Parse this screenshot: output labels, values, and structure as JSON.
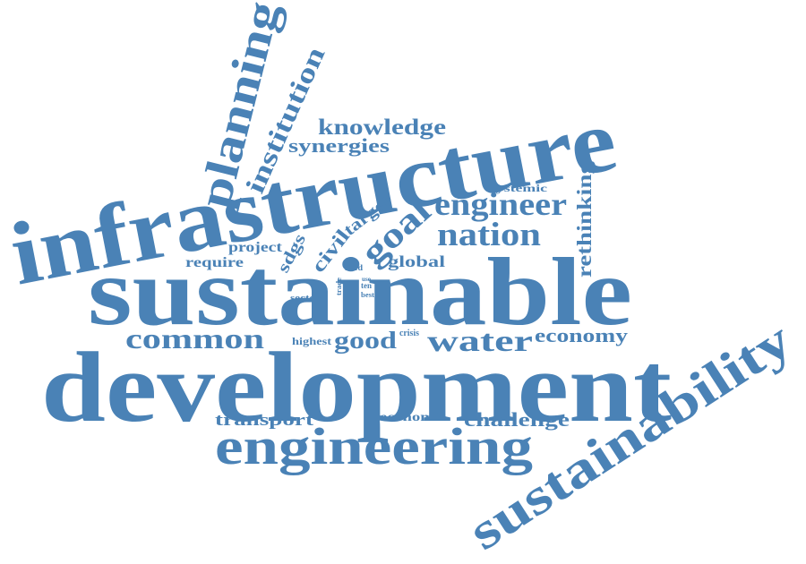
{
  "color": "#4a82b6",
  "words": [
    {
      "id": "infrastructure",
      "text": "infrastructure"
    },
    {
      "id": "sustainable",
      "text": "sustainable"
    },
    {
      "id": "development",
      "text": "development"
    },
    {
      "id": "engineering",
      "text": "engineering"
    },
    {
      "id": "sustainability",
      "text": "sustainability"
    },
    {
      "id": "planning",
      "text": "planning"
    },
    {
      "id": "institution",
      "text": "institution"
    },
    {
      "id": "knowledge",
      "text": "knowledge"
    },
    {
      "id": "synergies",
      "text": "synergies"
    },
    {
      "id": "engineer",
      "text": "engineer"
    },
    {
      "id": "nation",
      "text": "nation"
    },
    {
      "id": "goal",
      "text": "goal"
    },
    {
      "id": "civil",
      "text": "civil"
    },
    {
      "id": "target",
      "text": "target"
    },
    {
      "id": "sdgs",
      "text": "sdgs"
    },
    {
      "id": "project",
      "text": "project"
    },
    {
      "id": "require",
      "text": "require"
    },
    {
      "id": "global",
      "text": "global"
    },
    {
      "id": "systemic",
      "text": "systemic"
    },
    {
      "id": "rethinking",
      "text": "rethinking"
    },
    {
      "id": "need",
      "text": "need"
    },
    {
      "id": "trade",
      "text": "trade"
    },
    {
      "id": "ten",
      "text": "ten"
    },
    {
      "id": "use",
      "text": "use"
    },
    {
      "id": "best",
      "text": "best"
    },
    {
      "id": "sector",
      "text": "sector"
    },
    {
      "id": "highest",
      "text": "highest"
    },
    {
      "id": "crisis",
      "text": "crisis"
    },
    {
      "id": "common",
      "text": "common"
    },
    {
      "id": "good",
      "text": "good"
    },
    {
      "id": "water",
      "text": "water"
    },
    {
      "id": "economy",
      "text": "economy"
    },
    {
      "id": "transport",
      "text": "transport"
    },
    {
      "id": "economic",
      "text": "economic"
    },
    {
      "id": "challenge",
      "text": "challenge"
    }
  ]
}
